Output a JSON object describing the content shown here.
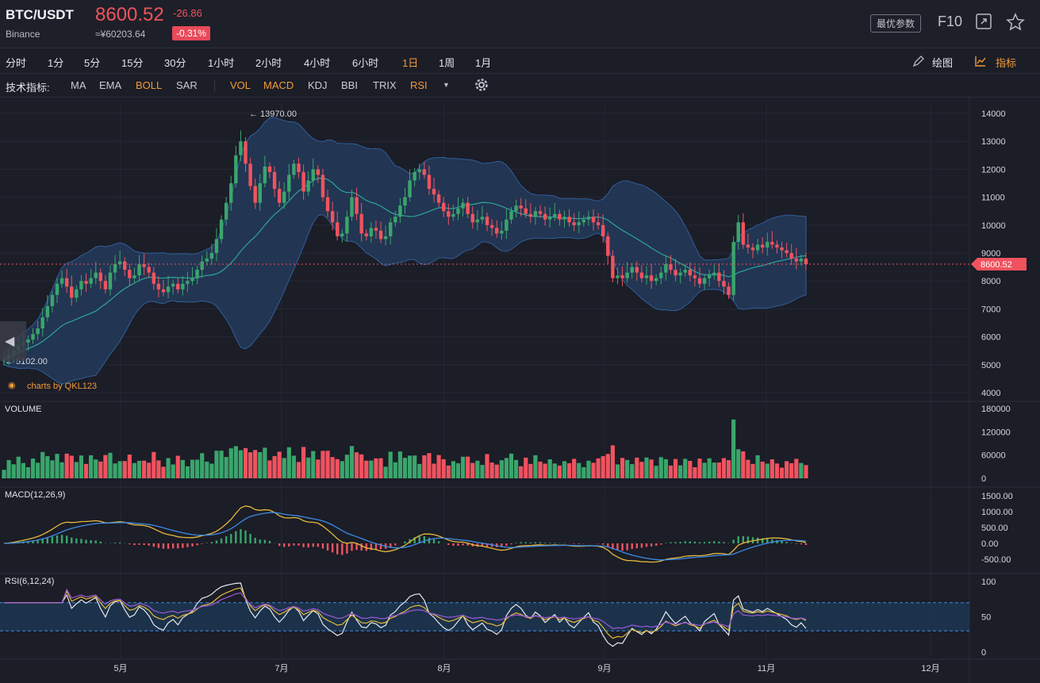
{
  "header": {
    "pair": "BTC/USDT",
    "exchange": "Binance",
    "price": "8600.52",
    "change": "-26.86",
    "cny_price": "≈¥60203.64",
    "change_pct": "-0.31%",
    "params_button": "最优参数",
    "f10_button": "F10",
    "expand_icon": "expand-icon",
    "star_icon": "star-icon"
  },
  "periods": [
    "分时",
    "1分",
    "5分",
    "15分",
    "30分",
    "1小时",
    "2小时",
    "4小时",
    "6小时",
    "1日",
    "1周",
    "1月"
  ],
  "active_period": "1日",
  "right_tools": {
    "draw": "绘图",
    "indicators": "指标"
  },
  "indicator_bar": {
    "label": "技术指标:",
    "main": [
      "MA",
      "EMA",
      "BOLL",
      "SAR"
    ],
    "sub": [
      "VOL",
      "MACD",
      "KDJ",
      "BBI",
      "TRIX",
      "RSI"
    ],
    "active": [
      "BOLL",
      "VOL",
      "MACD",
      "RSI"
    ]
  },
  "panels": {
    "price": {
      "y_ticks": [
        "14000",
        "13000",
        "12000",
        "11000",
        "10000",
        "9000",
        "8000",
        "7000",
        "6000",
        "5000",
        "4000"
      ],
      "high_marker": "13970.00",
      "low_marker": "5102.00",
      "last_price_tag": "8600.52",
      "watermark": "charts by QKL123"
    },
    "volume": {
      "label": "VOLUME",
      "y_ticks": [
        "180000",
        "120000",
        "60000",
        "0"
      ]
    },
    "macd": {
      "label": "MACD(12,26,9)",
      "y_ticks": [
        "1500.00",
        "1000.00",
        "500.00",
        "0.00",
        "-500.00"
      ]
    },
    "rsi": {
      "label": "RSI(6,12,24)",
      "y_ticks": [
        "100",
        "50",
        "0"
      ]
    }
  },
  "x_axis": [
    "5月",
    "7月",
    "8月",
    "9月",
    "11月",
    "12月"
  ],
  "colors": {
    "up": "#3aa56c",
    "down": "#f0535f",
    "accent": "#f29b38",
    "boll_fill": "#23395a",
    "boll_mid": "#2fa59b",
    "macd_dif": "#e7b93a",
    "macd_dea": "#3d8be6",
    "rsi6": "#e6e8ee",
    "rsi12": "#e7b93a",
    "rsi24": "#9b59d9",
    "band": "#1d3550"
  },
  "chart_data": {
    "type": "candlestick",
    "title": "BTC/USDT",
    "ylim": [
      4000,
      14000
    ],
    "closes_approx": [
      5200,
      5350,
      5500,
      5700,
      5800,
      5900,
      6100,
      6300,
      6700,
      7100,
      7500,
      7900,
      8100,
      7800,
      7400,
      7700,
      8000,
      7900,
      8100,
      8300,
      8000,
      7700,
      8300,
      8600,
      8700,
      8400,
      8100,
      8200,
      8600,
      8500,
      8300,
      7900,
      7700,
      7600,
      7800,
      7900,
      7700,
      7900,
      8000,
      8100,
      8400,
      8700,
      8800,
      9000,
      9500,
      10200,
      10800,
      11500,
      12500,
      13000,
      12200,
      11400,
      10800,
      11500,
      12100,
      11900,
      11300,
      10800,
      11200,
      11800,
      12200,
      11900,
      11200,
      11600,
      12000,
      11800,
      11000,
      10500,
      10100,
      9600,
      9700,
      10300,
      11000,
      10400,
      9700,
      9600,
      9900,
      9800,
      9500,
      9600,
      10100,
      10300,
      10700,
      11000,
      11600,
      11900,
      12000,
      11800,
      11300,
      11100,
      10800,
      10500,
      10300,
      10400,
      10600,
      10800,
      10400,
      10100,
      10200,
      10300,
      10000,
      9900,
      9700,
      9800,
      10200,
      10500,
      10700,
      10600,
      10400,
      10300,
      10500,
      10400,
      10200,
      10300,
      10400,
      10200,
      10300,
      10100,
      10000,
      10100,
      10200,
      10300,
      10100,
      10000,
      9600,
      8900,
      8100,
      8200,
      8100,
      8300,
      8500,
      8300,
      8100,
      8200,
      8000,
      8100,
      8300,
      8600,
      8400,
      8200,
      8300,
      8400,
      8200,
      8100,
      7900,
      8100,
      8200,
      8300,
      8000,
      7800,
      7500,
      9400,
      10100,
      9300,
      9200,
      9100,
      9300,
      9200,
      9400,
      9300,
      9200,
      9100,
      9000,
      8800,
      8700,
      8800,
      8600
    ]
  }
}
